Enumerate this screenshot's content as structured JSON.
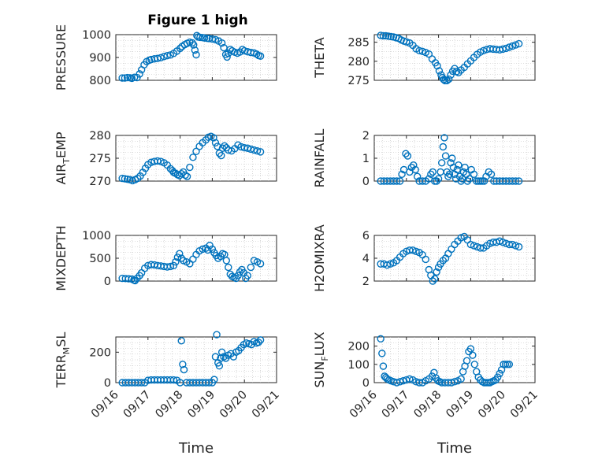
{
  "figure_title": "Figure 1 high",
  "colors": {
    "marker": "#0072bd",
    "axis": "#262626",
    "grid": "#bdbdbd"
  },
  "chart_data": [
    {
      "id": "pressure",
      "type": "scatter",
      "title": "Figure 1 high",
      "ylabel": "PRESSURE",
      "ylim": [
        800,
        1000
      ],
      "yticks": [
        800,
        900,
        1000
      ],
      "xlim": [
        0,
        5
      ],
      "xticks": [],
      "xlabel": "",
      "grid": true,
      "x": [
        0.2,
        0.28,
        0.36,
        0.44,
        0.5,
        0.58,
        0.66,
        0.74,
        0.8,
        0.88,
        0.96,
        1.04,
        1.1,
        1.2,
        1.3,
        1.4,
        1.5,
        1.6,
        1.7,
        1.8,
        1.9,
        2.0,
        2.06,
        2.14,
        2.22,
        2.3,
        2.38,
        2.42,
        2.46,
        2.5,
        2.52,
        2.56,
        2.62,
        2.7,
        2.76,
        2.84,
        2.9,
        3.0,
        3.1,
        3.2,
        3.3,
        3.36,
        3.42,
        3.46,
        3.5,
        3.56,
        3.62,
        3.7,
        3.78,
        3.86,
        3.94,
        4.0,
        4.1,
        4.2,
        4.3,
        4.38,
        4.44,
        4.5
      ],
      "y": [
        810,
        810,
        812,
        811,
        809,
        813,
        812,
        828,
        846,
        868,
        882,
        888,
        891,
        894,
        896,
        899,
        904,
        908,
        911,
        918,
        928,
        940,
        948,
        956,
        962,
        967,
        964,
        955,
        932,
        912,
        996,
        990,
        988,
        987,
        985,
        984,
        983,
        981,
        978,
        972,
        963,
        943,
        913,
        902,
        918,
        935,
        929,
        923,
        919,
        924,
        935,
        929,
        925,
        922,
        920,
        915,
        909,
        906
      ]
    },
    {
      "id": "theta",
      "type": "scatter",
      "ylabel": "THETA",
      "ylim": [
        275,
        287
      ],
      "yticks": [
        275,
        280,
        285
      ],
      "xlim": [
        0,
        5
      ],
      "xticks": [],
      "xlabel": "",
      "grid": true,
      "x": [
        0.2,
        0.28,
        0.36,
        0.44,
        0.52,
        0.6,
        0.68,
        0.76,
        0.84,
        0.92,
        1.0,
        1.1,
        1.2,
        1.3,
        1.4,
        1.5,
        1.6,
        1.7,
        1.8,
        1.9,
        1.96,
        2.02,
        2.08,
        2.12,
        2.16,
        2.2,
        2.26,
        2.32,
        2.38,
        2.44,
        2.5,
        2.56,
        2.62,
        2.7,
        2.8,
        2.9,
        3.0,
        3.1,
        3.2,
        3.3,
        3.4,
        3.5,
        3.6,
        3.7,
        3.8,
        3.9,
        4.0,
        4.1,
        4.2,
        4.3,
        4.4,
        4.5
      ],
      "y": [
        286.8,
        286.7,
        286.7,
        286.6,
        286.5,
        286.4,
        286.2,
        286.0,
        285.6,
        285.3,
        285.1,
        284.8,
        284.2,
        283.3,
        282.8,
        282.6,
        282.3,
        281.9,
        280.6,
        279.6,
        278.8,
        277.5,
        276.4,
        275.7,
        275.2,
        274.9,
        274.9,
        275.3,
        276.4,
        277.4,
        278.1,
        277.3,
        277.0,
        277.7,
        278.4,
        279.3,
        280.1,
        281.0,
        281.8,
        282.4,
        282.8,
        283.1,
        283.3,
        283.2,
        283.1,
        283.0,
        283.2,
        283.4,
        283.7,
        284.0,
        284.3,
        284.6
      ]
    },
    {
      "id": "air-temp",
      "type": "scatter",
      "ylabel": "AIR",
      "ylabel_sub": "T",
      "ylabel_tail": "EMP",
      "ylim": [
        270,
        280
      ],
      "yticks": [
        270,
        275,
        280
      ],
      "xlim": [
        0,
        5
      ],
      "xticks": [],
      "xlabel": "",
      "grid": true,
      "x": [
        0.2,
        0.28,
        0.36,
        0.44,
        0.52,
        0.6,
        0.68,
        0.76,
        0.84,
        0.92,
        1.0,
        1.1,
        1.2,
        1.3,
        1.4,
        1.5,
        1.6,
        1.7,
        1.76,
        1.8,
        1.86,
        1.92,
        1.98,
        2.04,
        2.1,
        2.16,
        2.22,
        2.3,
        2.4,
        2.5,
        2.6,
        2.7,
        2.8,
        2.88,
        2.96,
        3.04,
        3.1,
        3.16,
        3.22,
        3.28,
        3.32,
        3.38,
        3.44,
        3.5,
        3.6,
        3.7,
        3.8,
        3.9,
        4.0,
        4.1,
        4.2,
        4.3,
        4.4,
        4.5
      ],
      "y": [
        270.6,
        270.5,
        270.4,
        270.3,
        270.1,
        270.3,
        270.6,
        271.1,
        271.9,
        272.8,
        273.6,
        274.1,
        274.3,
        274.4,
        274.3,
        274.0,
        273.5,
        272.7,
        272.3,
        271.9,
        271.7,
        271.4,
        271.2,
        271.6,
        272.0,
        271.3,
        271.0,
        273.0,
        275.2,
        276.5,
        277.6,
        278.4,
        279.0,
        279.6,
        279.8,
        279.5,
        278.4,
        277.6,
        276.1,
        275.6,
        277.2,
        277.7,
        277.3,
        276.8,
        276.6,
        277.1,
        277.9,
        277.5,
        277.3,
        277.2,
        277.0,
        276.8,
        276.6,
        276.4
      ]
    },
    {
      "id": "rainfall",
      "type": "scatter",
      "ylabel": "RAINFALL",
      "ylim": [
        0,
        2
      ],
      "yticks": [
        0,
        1,
        2
      ],
      "xlim": [
        0,
        5
      ],
      "xticks": [],
      "xlabel": "",
      "grid": true,
      "x": [
        0.2,
        0.3,
        0.4,
        0.5,
        0.6,
        0.7,
        0.8,
        0.86,
        0.92,
        0.98,
        1.04,
        1.1,
        1.16,
        1.22,
        1.28,
        1.34,
        1.4,
        1.5,
        1.6,
        1.7,
        1.76,
        1.82,
        1.88,
        1.94,
        2.0,
        2.06,
        2.1,
        2.14,
        2.18,
        2.22,
        2.26,
        2.3,
        2.34,
        2.38,
        2.42,
        2.46,
        2.5,
        2.54,
        2.58,
        2.62,
        2.66,
        2.7,
        2.74,
        2.78,
        2.82,
        2.86,
        2.9,
        2.96,
        3.02,
        3.1,
        3.18,
        3.24,
        3.3,
        3.36,
        3.42,
        3.48,
        3.56,
        3.64,
        3.72,
        3.8,
        3.9,
        4.0,
        4.1,
        4.2,
        4.3,
        4.4,
        4.5
      ],
      "y": [
        0,
        0,
        0,
        0,
        0,
        0,
        0,
        0.3,
        0.5,
        1.2,
        1.1,
        0.4,
        0.6,
        0.7,
        0.5,
        0.2,
        0,
        0,
        0,
        0.1,
        0.3,
        0.4,
        0,
        0,
        0.1,
        0.4,
        0.8,
        1.5,
        1.9,
        1.1,
        0.4,
        0.2,
        0.3,
        0.8,
        1.0,
        0.6,
        0.3,
        0.1,
        0.5,
        0.7,
        0.2,
        0,
        0.1,
        0.4,
        0.6,
        0.3,
        0,
        0.1,
        0.5,
        0.3,
        0,
        0,
        0,
        0,
        0,
        0.2,
        0.4,
        0.3,
        0,
        0,
        0,
        0,
        0,
        0,
        0,
        0,
        0
      ]
    },
    {
      "id": "mixdepth",
      "type": "scatter",
      "ylabel": "MIXDEPTH",
      "ylim": [
        0,
        1000
      ],
      "yticks": [
        0,
        500,
        1000
      ],
      "xlim": [
        0,
        5
      ],
      "xticks": [],
      "xlabel": "",
      "grid": true,
      "x": [
        0.2,
        0.3,
        0.4,
        0.5,
        0.56,
        0.6,
        0.66,
        0.74,
        0.8,
        0.9,
        1.0,
        1.1,
        1.2,
        1.3,
        1.4,
        1.5,
        1.6,
        1.7,
        1.8,
        1.86,
        1.92,
        1.98,
        2.04,
        2.1,
        2.2,
        2.3,
        2.4,
        2.5,
        2.6,
        2.7,
        2.8,
        2.86,
        2.92,
        3.0,
        3.06,
        3.12,
        3.18,
        3.26,
        3.32,
        3.38,
        3.44,
        3.5,
        3.56,
        3.62,
        3.68,
        3.74,
        3.8,
        3.86,
        3.92,
        3.98,
        4.04,
        4.1,
        4.2,
        4.3,
        4.4,
        4.5
      ],
      "y": [
        60,
        55,
        50,
        45,
        20,
        10,
        60,
        120,
        180,
        280,
        340,
        360,
        355,
        340,
        330,
        320,
        310,
        320,
        340,
        420,
        520,
        600,
        500,
        450,
        420,
        380,
        480,
        580,
        660,
        700,
        720,
        680,
        780,
        700,
        620,
        560,
        500,
        540,
        600,
        580,
        450,
        300,
        150,
        100,
        80,
        60,
        120,
        200,
        250,
        180,
        60,
        120,
        300,
        450,
        420,
        380
      ]
    },
    {
      "id": "h2omixra",
      "type": "scatter",
      "ylabel": "H2OMIXRA",
      "ylim": [
        2,
        6
      ],
      "yticks": [
        2,
        4,
        6
      ],
      "xlim": [
        0,
        5
      ],
      "xticks": [],
      "xlabel": "",
      "grid": true,
      "x": [
        0.2,
        0.3,
        0.4,
        0.5,
        0.6,
        0.7,
        0.8,
        0.9,
        1.0,
        1.1,
        1.2,
        1.3,
        1.4,
        1.5,
        1.6,
        1.7,
        1.76,
        1.82,
        1.88,
        1.94,
        2.0,
        2.06,
        2.14,
        2.22,
        2.3,
        2.4,
        2.5,
        2.6,
        2.7,
        2.8,
        2.9,
        3.0,
        3.1,
        3.2,
        3.3,
        3.4,
        3.5,
        3.6,
        3.7,
        3.8,
        3.9,
        4.0,
        4.1,
        4.2,
        4.3,
        4.4,
        4.5
      ],
      "y": [
        3.5,
        3.5,
        3.4,
        3.5,
        3.6,
        3.8,
        4.1,
        4.4,
        4.6,
        4.7,
        4.7,
        4.6,
        4.5,
        4.3,
        3.9,
        3.0,
        2.5,
        2.0,
        2.2,
        2.8,
        3.2,
        3.5,
        3.8,
        4.0,
        4.4,
        4.8,
        5.2,
        5.5,
        5.8,
        5.9,
        5.6,
        5.2,
        5.1,
        5.0,
        4.9,
        4.9,
        5.1,
        5.3,
        5.4,
        5.4,
        5.5,
        5.4,
        5.3,
        5.2,
        5.2,
        5.1,
        5.0
      ]
    },
    {
      "id": "terr-msl",
      "type": "scatter",
      "ylabel": "TERR",
      "ylabel_sub": "M",
      "ylabel_tail": "SL",
      "ylim": [
        0,
        300
      ],
      "yticks": [
        0,
        200
      ],
      "xlim": [
        0,
        5
      ],
      "xticks": [
        "09/16",
        "09/17",
        "09/18",
        "09/19",
        "09/20",
        "09/21"
      ],
      "xlabel": "Time",
      "grid": true,
      "x": [
        0.2,
        0.3,
        0.4,
        0.5,
        0.6,
        0.7,
        0.8,
        0.9,
        1.0,
        1.1,
        1.2,
        1.3,
        1.4,
        1.5,
        1.6,
        1.7,
        1.8,
        1.9,
        2.0,
        2.04,
        2.08,
        2.12,
        2.2,
        2.3,
        2.4,
        2.5,
        2.6,
        2.7,
        2.8,
        2.9,
        3.0,
        3.06,
        3.1,
        3.14,
        3.18,
        3.22,
        3.26,
        3.3,
        3.36,
        3.42,
        3.5,
        3.58,
        3.66,
        3.74,
        3.82,
        3.9,
        3.98,
        4.06,
        4.14,
        4.22,
        4.3,
        4.38,
        4.44,
        4.5
      ],
      "y": [
        0,
        0,
        0,
        0,
        0,
        0,
        0,
        0,
        15,
        18,
        18,
        18,
        18,
        18,
        18,
        18,
        18,
        15,
        0,
        275,
        120,
        85,
        0,
        0,
        0,
        0,
        0,
        0,
        0,
        0,
        0,
        20,
        170,
        315,
        130,
        110,
        160,
        200,
        170,
        160,
        180,
        190,
        170,
        200,
        210,
        230,
        250,
        260,
        255,
        250,
        270,
        260,
        265,
        280
      ]
    },
    {
      "id": "sun-flux",
      "type": "scatter",
      "ylabel": "SUN",
      "ylabel_sub": "F",
      "ylabel_tail": "LUX",
      "ylim": [
        0,
        250
      ],
      "yticks": [
        0,
        100,
        200
      ],
      "xlim": [
        0,
        5
      ],
      "xticks": [
        "09/16",
        "09/17",
        "09/18",
        "09/19",
        "09/20",
        "09/21"
      ],
      "xlabel": "Time",
      "grid": true,
      "x": [
        0.2,
        0.24,
        0.28,
        0.32,
        0.36,
        0.4,
        0.46,
        0.52,
        0.6,
        0.7,
        0.8,
        0.9,
        1.0,
        1.1,
        1.2,
        1.3,
        1.4,
        1.5,
        1.6,
        1.7,
        1.8,
        1.86,
        1.92,
        1.98,
        2.04,
        2.1,
        2.2,
        2.3,
        2.4,
        2.5,
        2.6,
        2.7,
        2.76,
        2.82,
        2.88,
        2.94,
        3.0,
        3.06,
        3.12,
        3.18,
        3.24,
        3.3,
        3.36,
        3.42,
        3.48,
        3.54,
        3.6,
        3.66,
        3.72,
        3.78,
        3.84,
        3.9,
        3.96,
        4.02,
        4.08,
        4.14,
        4.2
      ],
      "y": [
        240,
        160,
        90,
        35,
        28,
        20,
        15,
        10,
        5,
        0,
        5,
        10,
        15,
        20,
        15,
        5,
        0,
        0,
        10,
        20,
        35,
        55,
        25,
        10,
        5,
        0,
        0,
        0,
        0,
        5,
        10,
        20,
        60,
        90,
        120,
        170,
        185,
        150,
        100,
        60,
        30,
        15,
        5,
        0,
        0,
        0,
        0,
        5,
        10,
        15,
        30,
        50,
        70,
        100,
        100,
        100,
        100
      ]
    }
  ]
}
